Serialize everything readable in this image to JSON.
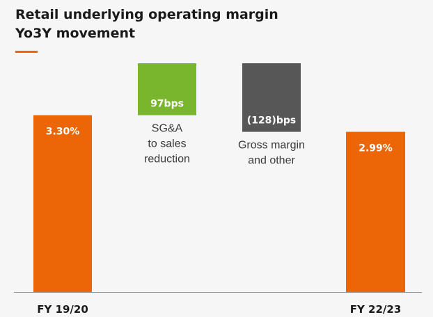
{
  "chart_data": {
    "type": "bar",
    "subtype": "waterfall",
    "title": [
      "Retail underlying operating margin",
      "Yo3Y movement"
    ],
    "colors": {
      "total": "#ec6608",
      "increase": "#7ab52e",
      "decrease": "#575757",
      "accent_rule": "#ec6608",
      "baseline": "#8a8a8a"
    },
    "bars": [
      {
        "kind": "total",
        "category": "FY 19/20",
        "value": 3.3,
        "value_label": "3.30%",
        "description": []
      },
      {
        "kind": "increase",
        "category": "",
        "value": 0.97,
        "value_label": "97bps",
        "description": [
          "SG&A",
          "to sales",
          "reduction"
        ]
      },
      {
        "kind": "decrease",
        "category": "",
        "value": -1.28,
        "value_label": "(128)bps",
        "description": [
          "Gross margin",
          "and other"
        ]
      },
      {
        "kind": "total",
        "category": "FY 22/23",
        "value": 2.99,
        "value_label": "2.99%",
        "description": []
      }
    ]
  }
}
